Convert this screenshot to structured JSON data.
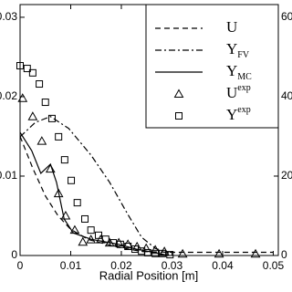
{
  "chart_data": {
    "type": "line",
    "x_label": "Radial Position [m]",
    "xlim": [
      0,
      0.051
    ],
    "xticks": [
      0,
      0.01,
      0.02,
      0.03,
      0.04,
      0.05
    ],
    "ylim": [
      0,
      0.0316
    ],
    "yticks": [
      0,
      0.01,
      0.02,
      0.03
    ],
    "y2lim": [
      0,
      63.2
    ],
    "y2ticks": [
      0,
      20,
      40,
      60
    ],
    "legend": "upper right",
    "series": [
      {
        "name": "U",
        "style": "dashed",
        "color": "#000000",
        "x": [
          0,
          0.0025,
          0.005,
          0.0075,
          0.01,
          0.0135,
          0.019,
          0.024,
          0.03,
          0.04,
          0.05
        ],
        "values": [
          0.015,
          0.011,
          0.0075,
          0.005,
          0.0033,
          0.002,
          0.0011,
          0.0005,
          0.0004,
          0.0004,
          0.0004
        ]
      },
      {
        "name": "Y",
        "subscript": "FV",
        "style": "dashdot",
        "color": "#000000",
        "axis": "y2",
        "x": [
          0,
          0.003,
          0.006,
          0.0096,
          0.014,
          0.0177,
          0.0213,
          0.024,
          0.0267,
          0.0294
        ],
        "values": [
          29.9,
          33.5,
          35,
          32,
          25.3,
          18.4,
          10.3,
          4.6,
          1.8,
          0.7
        ]
      },
      {
        "name": "Y",
        "subscript": "MC",
        "style": "solid",
        "color": "#000000",
        "axis": "y2",
        "x": [
          0,
          0.0023,
          0.0041,
          0.006,
          0.0072,
          0.0087,
          0.0105,
          0.014,
          0.0195,
          0.023,
          0.0267,
          0.0285
        ],
        "values": [
          31,
          26.4,
          20.7,
          23,
          18.4,
          9.2,
          5.7,
          4.1,
          2.8,
          1.6,
          0.7,
          0.2
        ]
      },
      {
        "name": "U",
        "superscript": "exp",
        "style": "triangle",
        "color": "#000000",
        "x": [
          0.0005,
          0.0025,
          0.0043,
          0.006,
          0.0076,
          0.009,
          0.0108,
          0.0124,
          0.014,
          0.0159,
          0.0177,
          0.0195,
          0.0213,
          0.0231,
          0.0249,
          0.0267,
          0.0285,
          0.0321,
          0.0393,
          0.0465
        ],
        "values": [
          0.0198,
          0.0175,
          0.0144,
          0.0109,
          0.0078,
          0.005,
          0.0032,
          0.0017,
          0.002,
          0.002,
          0.0016,
          0.0016,
          0.0014,
          0.0011,
          0.0009,
          0.0007,
          0.0005,
          0.0002,
          0.0002,
          0.0002
        ]
      },
      {
        "name": "Y",
        "superscript": "exp",
        "style": "square",
        "color": "#000000",
        "axis": "y2",
        "x": [
          0,
          0.0014,
          0.0025,
          0.0038,
          0.005,
          0.0063,
          0.0076,
          0.0088,
          0.0101,
          0.0113,
          0.0128,
          0.014,
          0.0155,
          0.0169,
          0.0184,
          0.0198,
          0.0213,
          0.0227,
          0.024,
          0.0252,
          0.0267,
          0.0281,
          0.0296
        ],
        "values": [
          47.8,
          47.1,
          46,
          43.2,
          38.6,
          34.5,
          29.9,
          24.1,
          18.9,
          13.3,
          9.2,
          6.4,
          5.1,
          4.1,
          3.2,
          2.8,
          2.3,
          1.6,
          1.1,
          0.7,
          0.5,
          0.5,
          0.2
        ]
      }
    ]
  }
}
